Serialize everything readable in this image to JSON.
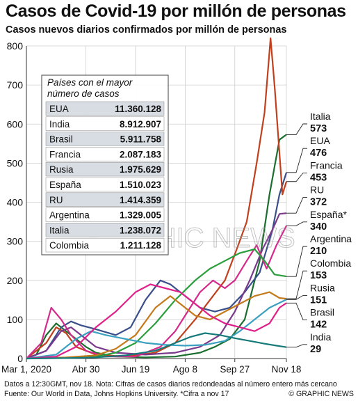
{
  "header": {
    "title": "Casos de Covid-19 por millón de personas",
    "subtitle": "Casos nuevos diarios confirmados por millón de personas"
  },
  "footer": {
    "note": "Datos a 12:30GMT, nov 18. Nota: Cifras de casos diarios redondeadas al número entero más cercano",
    "source": "Fuente: Our World in Data, Johns Hopkins University. *Cifra a nov 17",
    "credit": "© GRAPHIC NEWS"
  },
  "watermark": "GRAPHIC NEWS",
  "table": {
    "title_line1": "Países con el mayor",
    "title_line2": "número de casos",
    "rows": [
      {
        "country": "EUA",
        "cases": "11.360.128"
      },
      {
        "country": "India",
        "cases": "8.912.907"
      },
      {
        "country": "Brasil",
        "cases": "5.911.758"
      },
      {
        "country": "Francia",
        "cases": "2.087.183"
      },
      {
        "country": "Rusia",
        "cases": "1.975.629"
      },
      {
        "country": "España",
        "cases": "1.510.023"
      },
      {
        "country": "RU",
        "cases": "1.414.359"
      },
      {
        "country": "Argentina",
        "cases": "1.329.005"
      },
      {
        "country": "Italia",
        "cases": "1.238.072"
      },
      {
        "country": "Colombia",
        "cases": "1.211.128"
      }
    ]
  },
  "chart_data": {
    "type": "line",
    "ylim": [
      0,
      800
    ],
    "yticks": [
      0,
      100,
      200,
      300,
      400,
      500,
      600,
      700,
      800
    ],
    "xticks": [
      {
        "day": 0,
        "label": "Mar 1, 2020"
      },
      {
        "day": 60,
        "label": "Abr 30"
      },
      {
        "day": 110,
        "label": "Jun 19"
      },
      {
        "day": 160,
        "label": "Ago 8"
      },
      {
        "day": 210,
        "label": "Sep 27"
      },
      {
        "day": 262,
        "label": "Nov 18"
      }
    ],
    "xlim": [
      0,
      262
    ],
    "grid": true,
    "series": [
      {
        "name": "Italia",
        "color": "#1a6e2e",
        "end_value": "573",
        "points": [
          [
            0,
            1
          ],
          [
            10,
            10
          ],
          [
            20,
            60
          ],
          [
            30,
            90
          ],
          [
            40,
            70
          ],
          [
            50,
            50
          ],
          [
            60,
            30
          ],
          [
            70,
            15
          ],
          [
            90,
            5
          ],
          [
            120,
            3
          ],
          [
            150,
            5
          ],
          [
            175,
            15
          ],
          [
            190,
            30
          ],
          [
            205,
            50
          ],
          [
            220,
            100
          ],
          [
            235,
            250
          ],
          [
            245,
            420
          ],
          [
            255,
            560
          ],
          [
            262,
            573
          ]
        ]
      },
      {
        "name": "EUA",
        "color": "#3a4f8a",
        "end_value": "476",
        "points": [
          [
            0,
            0
          ],
          [
            20,
            20
          ],
          [
            35,
            80
          ],
          [
            45,
            95
          ],
          [
            55,
            85
          ],
          [
            70,
            75
          ],
          [
            90,
            60
          ],
          [
            105,
            80
          ],
          [
            120,
            150
          ],
          [
            135,
            200
          ],
          [
            145,
            190
          ],
          [
            160,
            160
          ],
          [
            175,
            130
          ],
          [
            190,
            120
          ],
          [
            205,
            130
          ],
          [
            220,
            170
          ],
          [
            235,
            220
          ],
          [
            248,
            330
          ],
          [
            255,
            420
          ],
          [
            262,
            476
          ]
        ]
      },
      {
        "name": "Francia",
        "color": "#c0401e",
        "end_value": "453",
        "points": [
          [
            0,
            0
          ],
          [
            20,
            40
          ],
          [
            30,
            80
          ],
          [
            40,
            65
          ],
          [
            50,
            30
          ],
          [
            70,
            10
          ],
          [
            100,
            5
          ],
          [
            130,
            15
          ],
          [
            150,
            40
          ],
          [
            170,
            100
          ],
          [
            185,
            150
          ],
          [
            200,
            200
          ],
          [
            212,
            280
          ],
          [
            222,
            350
          ],
          [
            232,
            500
          ],
          [
            240,
            630
          ],
          [
            246,
            820
          ],
          [
            250,
            700
          ],
          [
            254,
            560
          ],
          [
            258,
            420
          ],
          [
            262,
            453
          ]
        ]
      },
      {
        "name": "RU",
        "color": "#7a3a8c",
        "end_value": "372",
        "points": [
          [
            0,
            0
          ],
          [
            20,
            20
          ],
          [
            35,
            70
          ],
          [
            45,
            80
          ],
          [
            55,
            60
          ],
          [
            70,
            30
          ],
          [
            90,
            15
          ],
          [
            120,
            10
          ],
          [
            150,
            15
          ],
          [
            175,
            30
          ],
          [
            195,
            60
          ],
          [
            210,
            120
          ],
          [
            225,
            200
          ],
          [
            238,
            280
          ],
          [
            248,
            330
          ],
          [
            255,
            370
          ],
          [
            262,
            372
          ]
        ]
      },
      {
        "name": "España",
        "color": "#d42a8c",
        "end_value": "340",
        "points": [
          [
            0,
            0
          ],
          [
            15,
            40
          ],
          [
            25,
            130
          ],
          [
            35,
            100
          ],
          [
            45,
            60
          ],
          [
            60,
            20
          ],
          [
            80,
            5
          ],
          [
            110,
            5
          ],
          [
            135,
            30
          ],
          [
            150,
            70
          ],
          [
            165,
            130
          ],
          [
            175,
            170
          ],
          [
            188,
            200
          ],
          [
            200,
            180
          ],
          [
            210,
            200
          ],
          [
            222,
            250
          ],
          [
            232,
            290
          ],
          [
            242,
            230
          ],
          [
            252,
            290
          ],
          [
            262,
            340
          ]
        ]
      },
      {
        "name": "Argentina",
        "color": "#2a9e3c",
        "end_value": "210",
        "points": [
          [
            0,
            0
          ],
          [
            40,
            2
          ],
          [
            70,
            5
          ],
          [
            90,
            15
          ],
          [
            110,
            40
          ],
          [
            130,
            90
          ],
          [
            150,
            150
          ],
          [
            170,
            200
          ],
          [
            185,
            230
          ],
          [
            200,
            250
          ],
          [
            215,
            270
          ],
          [
            230,
            280
          ],
          [
            240,
            250
          ],
          [
            250,
            215
          ],
          [
            262,
            210
          ]
        ]
      },
      {
        "name": "Colombia",
        "color": "#c47a1a",
        "end_value": "153",
        "points": [
          [
            0,
            0
          ],
          [
            40,
            3
          ],
          [
            70,
            8
          ],
          [
            90,
            25
          ],
          [
            110,
            60
          ],
          [
            130,
            130
          ],
          [
            145,
            160
          ],
          [
            155,
            140
          ],
          [
            170,
            110
          ],
          [
            185,
            100
          ],
          [
            200,
            120
          ],
          [
            215,
            140
          ],
          [
            230,
            160
          ],
          [
            245,
            170
          ],
          [
            255,
            155
          ],
          [
            262,
            153
          ]
        ]
      },
      {
        "name": "Rusia",
        "color": "#3aa0c0",
        "end_value": "151",
        "points": [
          [
            0,
            0
          ],
          [
            30,
            10
          ],
          [
            50,
            50
          ],
          [
            65,
            70
          ],
          [
            80,
            60
          ],
          [
            100,
            50
          ],
          [
            120,
            40
          ],
          [
            140,
            35
          ],
          [
            160,
            33
          ],
          [
            180,
            35
          ],
          [
            200,
            45
          ],
          [
            215,
            70
          ],
          [
            230,
            100
          ],
          [
            245,
            130
          ],
          [
            262,
            151
          ]
        ]
      },
      {
        "name": "Brasil",
        "color": "#e0208a",
        "end_value": "142",
        "points": [
          [
            0,
            0
          ],
          [
            30,
            5
          ],
          [
            50,
            30
          ],
          [
            70,
            80
          ],
          [
            90,
            120
          ],
          [
            110,
            170
          ],
          [
            125,
            190
          ],
          [
            140,
            180
          ],
          [
            155,
            170
          ],
          [
            170,
            140
          ],
          [
            185,
            110
          ],
          [
            200,
            90
          ],
          [
            215,
            80
          ],
          [
            230,
            70
          ],
          [
            245,
            90
          ],
          [
            255,
            130
          ],
          [
            262,
            142
          ]
        ]
      },
      {
        "name": "India",
        "color": "#177a7a",
        "end_value": "29",
        "points": [
          [
            0,
            0
          ],
          [
            40,
            1
          ],
          [
            70,
            3
          ],
          [
            100,
            8
          ],
          [
            130,
            20
          ],
          [
            150,
            40
          ],
          [
            165,
            55
          ],
          [
            180,
            65
          ],
          [
            195,
            60
          ],
          [
            210,
            52
          ],
          [
            225,
            45
          ],
          [
            240,
            38
          ],
          [
            252,
            33
          ],
          [
            262,
            29
          ]
        ]
      }
    ]
  }
}
